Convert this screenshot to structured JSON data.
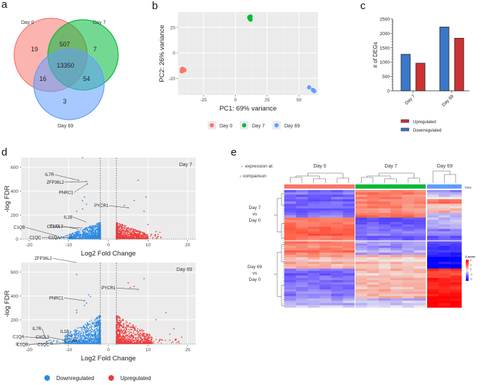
{
  "panels": {
    "a": "a",
    "b": "b",
    "c": "c",
    "d": "d",
    "e": "e"
  },
  "chart_data": [
    {
      "id": "a",
      "type": "venn",
      "sets": [
        "Day 0",
        "Day 7",
        "Day 69"
      ],
      "colors": {
        "Day 0": "#f8766d",
        "Day 7": "#00ba38",
        "Day 69": "#619cff"
      },
      "regions": {
        "Day 0 only": 19,
        "Day 7 only": 7,
        "Day 69 only": 3,
        "Day 0 & Day 7": 507,
        "Day 0 & Day 69": 16,
        "Day 7 & Day 69": 54,
        "All": 13350
      }
    },
    {
      "id": "b",
      "type": "scatter",
      "xlabel": "PC1: 69% variance",
      "ylabel": "PC2: 26% variance",
      "xlim": [
        -45,
        65
      ],
      "ylim": [
        -33,
        32
      ],
      "xticks": [
        -25,
        0,
        25,
        50
      ],
      "yticks": [
        -20,
        0,
        20
      ],
      "grid": true,
      "legend": "bottom",
      "series": [
        {
          "name": "Day 0",
          "color": "#f8766d",
          "points": [
            [
              -42,
              -13
            ],
            [
              -41,
              -14
            ],
            [
              -40,
              -13.5
            ],
            [
              -41.5,
              -12.5
            ],
            [
              -42,
              -14.5
            ],
            [
              -40.5,
              -13
            ]
          ]
        },
        {
          "name": "Day 7",
          "color": "#00ba38",
          "points": [
            [
              11,
              28
            ],
            [
              11.5,
              27
            ],
            [
              12,
              26
            ],
            [
              11,
              27.5
            ],
            [
              12,
              28.5
            ],
            [
              11.5,
              26.5
            ]
          ]
        },
        {
          "name": "Day 69",
          "color": "#619cff",
          "points": [
            [
              58,
              -27
            ],
            [
              61,
              -29
            ],
            [
              62,
              -30
            ]
          ]
        }
      ]
    },
    {
      "id": "c",
      "type": "bar",
      "categories": [
        "Day 7",
        "Day 69"
      ],
      "ylabel": "# of DEGs",
      "ylim": [
        0,
        2500
      ],
      "yticks": [
        0,
        500,
        1000,
        1500,
        2000,
        2500
      ],
      "legend": "bottom",
      "series": [
        {
          "name": "Downregulated",
          "color": "#3a78c9",
          "values": [
            1270,
            2220
          ]
        },
        {
          "name": "Upregulated",
          "color": "#cc3333",
          "values": [
            960,
            1830
          ]
        }
      ],
      "legend_order": [
        "Upregulated",
        "Downregulated"
      ]
    },
    {
      "id": "d",
      "type": "scatter",
      "subtype": "volcano",
      "xlabel": "Log2 Fold Change",
      "ylabel": "-log FDR",
      "xlim": [
        -22,
        22
      ],
      "ylim": [
        -10,
        680
      ],
      "xticks": [
        -20,
        -10,
        0,
        10,
        20
      ],
      "yticks": [
        0,
        200,
        400,
        600
      ],
      "thresholds_x": [
        -2,
        2
      ],
      "legend": "bottom",
      "legend_items": [
        {
          "name": "Downregulated",
          "color": "#2b8ae6"
        },
        {
          "name": "Upregulated",
          "color": "#ee3b3b"
        }
      ],
      "panels": [
        {
          "title": "Day 7",
          "labels": [
            {
              "text": "IL7R",
              "x": -7.5,
              "y": 490
            },
            {
              "text": "ZFP36L2",
              "x": -5.5,
              "y": 480
            },
            {
              "text": "PNRC1",
              "x": -5.3,
              "y": 460
            },
            {
              "text": "PYCR1",
              "x": 5,
              "y": 260
            },
            {
              "text": "CTLA4",
              "x": -6.5,
              "y": 90
            },
            {
              "text": "IL1B",
              "x": -5.5,
              "y": 140
            },
            {
              "text": "CXCL3",
              "x": -7.5,
              "y": 80
            },
            {
              "text": "C1QB",
              "x": -13,
              "y": 25
            },
            {
              "text": "C1QC",
              "x": -12,
              "y": 5
            },
            {
              "text": "C1QA",
              "x": -9,
              "y": 10
            }
          ],
          "outliers_down": [
            [
              -6.5,
              680
            ],
            [
              -7.5,
              490
            ],
            [
              -5.5,
              480
            ],
            [
              -5.3,
              460
            ],
            [
              -6.5,
              320
            ],
            [
              -6,
              350
            ],
            [
              -5.5,
              290
            ],
            [
              -8,
              230
            ],
            [
              -6.5,
              250
            ]
          ],
          "outliers_up": [
            [
              7.5,
              490
            ],
            [
              9.5,
              350
            ],
            [
              6.5,
              320
            ],
            [
              9,
              230
            ],
            [
              4,
              280
            ],
            [
              5,
              260
            ],
            [
              10,
              120
            ],
            [
              12,
              60
            ],
            [
              13,
              55
            ]
          ]
        },
        {
          "title": "Day 69",
          "labels": [
            {
              "text": "ZFP36L2",
              "x": -8,
              "y": 680
            },
            {
              "text": "PNRC1",
              "x": -6,
              "y": 360
            },
            {
              "text": "PYCR1",
              "x": 7.5,
              "y": 455
            },
            {
              "text": "IL7R",
              "x": -16,
              "y": 55
            },
            {
              "text": "C1QA",
              "x": -15,
              "y": 45
            },
            {
              "text": "CXCL3",
              "x": -11,
              "y": 30
            },
            {
              "text": "IL1B",
              "x": -9,
              "y": 60
            },
            {
              "text": "C1QB",
              "x": -14,
              "y": 5
            },
            {
              "text": "C1QC",
              "x": -11,
              "y": 5
            },
            {
              "text": "CTLA4",
              "x": -7,
              "y": 25
            }
          ],
          "outliers_down": [
            [
              -8,
              580
            ],
            [
              -5,
              410
            ],
            [
              -4.5,
              395
            ],
            [
              -6,
              360
            ],
            [
              -5.5,
              340
            ],
            [
              -6,
              320
            ],
            [
              -8,
              280
            ],
            [
              -8,
              260
            ],
            [
              -16,
              55
            ]
          ],
          "outliers_up": [
            [
              9,
              545
            ],
            [
              5,
              510
            ],
            [
              6.5,
              480
            ],
            [
              7.5,
              455
            ],
            [
              5.5,
              470
            ],
            [
              14.5,
              260
            ],
            [
              12,
              200
            ],
            [
              16.5,
              125
            ],
            [
              18.5,
              55
            ],
            [
              15.5,
              80
            ]
          ]
        }
      ]
    },
    {
      "id": "e",
      "type": "heatmap",
      "header_left": [
        "→ expression at:",
        "↓ comparison"
      ],
      "column_groups": [
        {
          "name": "Day 0",
          "color": "#f8766d",
          "n": 6
        },
        {
          "name": "Day 7",
          "color": "#00ba38",
          "n": 6
        },
        {
          "name": "Day 69",
          "color": "#619cff",
          "n": 3
        }
      ],
      "annotation_label": "Time",
      "row_groups": [
        {
          "name": "Day 7\nvs\nDay 0",
          "label_lines": [
            "Day 7",
            "vs",
            "Day 0"
          ]
        },
        {
          "name": "Day 69\nvs\nDay 0",
          "label_lines": [
            "Day 69",
            "vs",
            "Day 0"
          ]
        }
      ],
      "colorbar": {
        "title": "Z-score",
        "ticks": [
          2,
          1,
          0,
          -1,
          -2
        ],
        "low": "#0000ff",
        "mid": "#eeeeee",
        "high": "#ff0000"
      },
      "blocks": [
        {
          "rows": 12,
          "z": [
            -0.9,
            0.8,
            0.1
          ],
          "z69_pattern": [
            -0.6,
            -0.2,
            1.0,
            0.3,
            0.6,
            -0.5
          ]
        },
        {
          "rows": 10,
          "z": [
            1.0,
            -0.9,
            -0.7
          ],
          "z69_pattern": [
            -0.2,
            -0.5,
            -0.9,
            -1.0
          ]
        },
        {
          "rows": 6,
          "z": [
            0.9,
            -0.5,
            -1.4
          ],
          "z69_pattern": [
            -1.3,
            -1.5
          ]
        },
        {
          "rows": 6,
          "z": [
            0.5,
            0.3,
            -1.9
          ],
          "z69_pattern": [
            -2.0,
            -1.9
          ]
        },
        {
          "rows": 13,
          "z": [
            -0.9,
            0.35,
            1.5
          ],
          "z69_pattern": [
            1.4,
            1.6,
            1.5,
            1.7
          ]
        },
        {
          "rows": 4,
          "z": [
            -0.4,
            -0.3,
            2.0
          ],
          "z69_pattern": [
            2.0,
            2.0
          ]
        }
      ]
    }
  ]
}
